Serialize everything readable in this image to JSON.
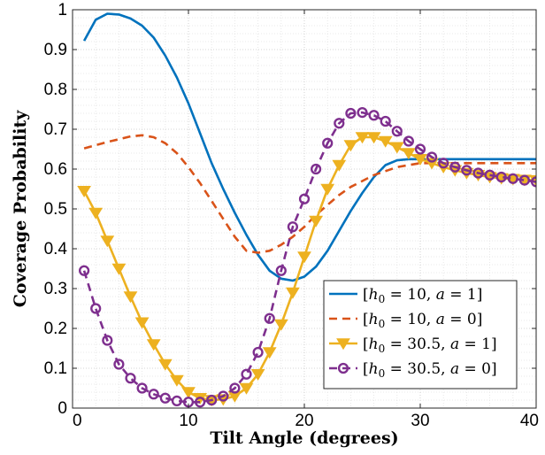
{
  "chart_data": {
    "type": "line",
    "title": "",
    "xlabel": "Tilt Angle (degrees)",
    "ylabel": "Coverage Probability",
    "xlim": [
      0,
      40
    ],
    "ylim": [
      0,
      1
    ],
    "xticks": [
      "0",
      "10",
      "20",
      "30",
      "40"
    ],
    "yticks": [
      "0",
      "0.1",
      "0.2",
      "0.3",
      "0.4",
      "0.5",
      "0.6",
      "0.7",
      "0.8",
      "0.9",
      "1"
    ],
    "grid": true,
    "legend_position": "bottom-right",
    "series": [
      {
        "name": "[h0 = 10, a = 1]",
        "color": "#0072BD",
        "style": "solid",
        "marker": "none",
        "x": [
          1,
          2,
          3,
          4,
          5,
          6,
          7,
          8,
          9,
          10,
          11,
          12,
          13,
          14,
          15,
          16,
          17,
          18,
          19,
          20,
          21,
          22,
          23,
          24,
          25,
          26,
          27,
          28,
          29,
          30,
          31,
          32,
          33,
          34,
          35,
          36,
          37,
          38,
          39,
          40
        ],
        "y": [
          0.922,
          0.975,
          0.99,
          0.988,
          0.978,
          0.96,
          0.93,
          0.885,
          0.83,
          0.765,
          0.69,
          0.615,
          0.55,
          0.49,
          0.435,
          0.385,
          0.345,
          0.325,
          0.32,
          0.33,
          0.355,
          0.395,
          0.445,
          0.495,
          0.54,
          0.58,
          0.61,
          0.622,
          0.625,
          0.625,
          0.625,
          0.625,
          0.625,
          0.625,
          0.625,
          0.625,
          0.625,
          0.625,
          0.625,
          0.625
        ]
      },
      {
        "name": "[h0 = 10, a = 0]",
        "color": "#D95319",
        "style": "dashed",
        "marker": "none",
        "x": [
          1,
          2,
          3,
          4,
          5,
          6,
          7,
          8,
          9,
          10,
          11,
          12,
          13,
          14,
          15,
          16,
          17,
          18,
          19,
          20,
          21,
          22,
          23,
          24,
          25,
          26,
          27,
          28,
          29,
          30,
          31,
          32,
          33,
          34,
          35,
          36,
          37,
          38,
          39,
          40
        ],
        "y": [
          0.652,
          0.66,
          0.668,
          0.675,
          0.682,
          0.685,
          0.68,
          0.665,
          0.64,
          0.605,
          0.565,
          0.52,
          0.475,
          0.43,
          0.395,
          0.39,
          0.395,
          0.41,
          0.43,
          0.455,
          0.485,
          0.51,
          0.535,
          0.555,
          0.57,
          0.585,
          0.595,
          0.605,
          0.61,
          0.615,
          0.615,
          0.615,
          0.615,
          0.615,
          0.615,
          0.615,
          0.615,
          0.615,
          0.615,
          0.615
        ]
      },
      {
        "name": "[h0 = 30.5, a = 1]",
        "color": "#EDB120",
        "style": "solid",
        "marker": "triangle-down",
        "x": [
          1,
          2,
          3,
          4,
          5,
          6,
          7,
          8,
          9,
          10,
          11,
          12,
          13,
          14,
          15,
          16,
          17,
          18,
          19,
          20,
          21,
          22,
          23,
          24,
          25,
          26,
          27,
          28,
          29,
          30,
          31,
          32,
          33,
          34,
          35,
          36,
          37,
          38,
          39,
          40
        ],
        "y": [
          0.545,
          0.49,
          0.42,
          0.35,
          0.28,
          0.215,
          0.16,
          0.11,
          0.07,
          0.04,
          0.025,
          0.02,
          0.022,
          0.03,
          0.05,
          0.085,
          0.14,
          0.21,
          0.29,
          0.38,
          0.47,
          0.55,
          0.61,
          0.66,
          0.68,
          0.68,
          0.67,
          0.655,
          0.64,
          0.625,
          0.615,
          0.605,
          0.597,
          0.59,
          0.585,
          0.58,
          0.577,
          0.575,
          0.573,
          0.572
        ]
      },
      {
        "name": "[h0 = 30.5, a = 0]",
        "color": "#7E2F8E",
        "style": "dashed",
        "marker": "circle",
        "x": [
          1,
          2,
          3,
          4,
          5,
          6,
          7,
          8,
          9,
          10,
          11,
          12,
          13,
          14,
          15,
          16,
          17,
          18,
          19,
          20,
          21,
          22,
          23,
          24,
          25,
          26,
          27,
          28,
          29,
          30,
          31,
          32,
          33,
          34,
          35,
          36,
          37,
          38,
          39,
          40
        ],
        "y": [
          0.345,
          0.25,
          0.17,
          0.11,
          0.075,
          0.05,
          0.035,
          0.025,
          0.018,
          0.015,
          0.015,
          0.02,
          0.03,
          0.05,
          0.085,
          0.14,
          0.225,
          0.345,
          0.455,
          0.525,
          0.6,
          0.665,
          0.715,
          0.74,
          0.742,
          0.735,
          0.72,
          0.695,
          0.67,
          0.65,
          0.63,
          0.615,
          0.605,
          0.597,
          0.59,
          0.585,
          0.58,
          0.576,
          0.572,
          0.568
        ]
      }
    ]
  }
}
